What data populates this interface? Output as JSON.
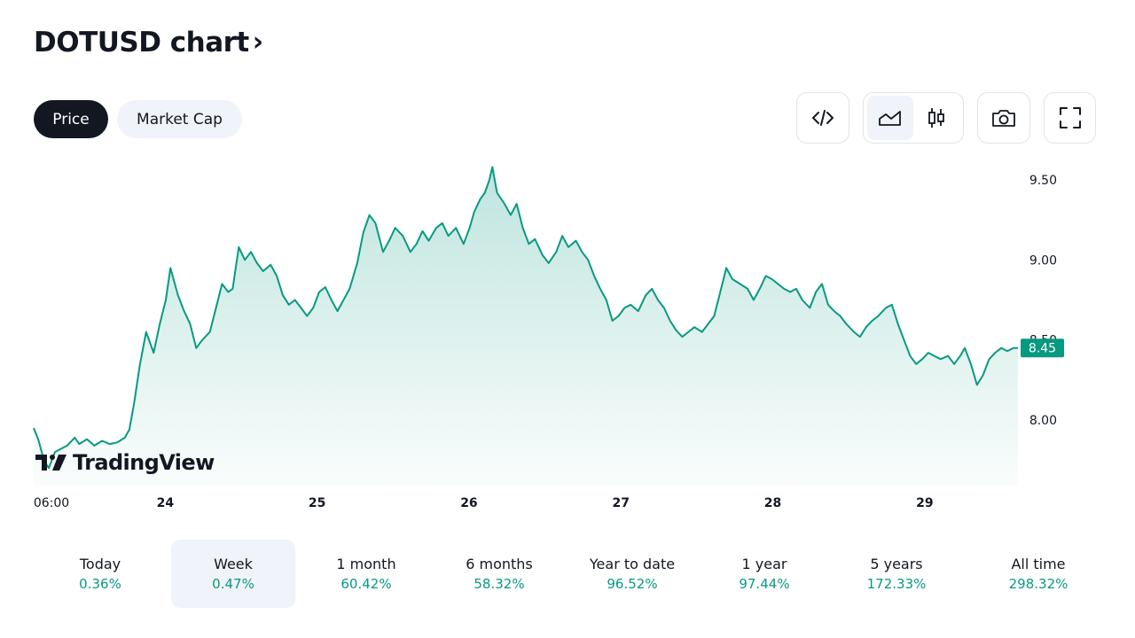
{
  "header": {
    "title": "DOTUSD chart",
    "chevron": "›"
  },
  "tabs": [
    {
      "label": "Price",
      "active": true
    },
    {
      "label": "Market Cap",
      "active": false
    }
  ],
  "toolbar": {
    "embed_icon": "code-icon",
    "area_icon": "area-chart-icon",
    "candle_icon": "candlestick-icon",
    "snapshot_icon": "camera-icon",
    "fullscreen_icon": "fullscreen-icon"
  },
  "watermark": {
    "text": "TradingView"
  },
  "colors": {
    "accent": "#089981",
    "text": "#131722",
    "muted_bg": "#f0f3fa"
  },
  "chart_data": {
    "type": "area",
    "symbol": "DOTUSD",
    "x_ticks": [
      "06:00",
      "24",
      "25",
      "26",
      "27",
      "28",
      "29"
    ],
    "y_ticks": [
      "9.50",
      "9.00",
      "8.50",
      "8.00"
    ],
    "ylim": [
      7.6,
      9.7
    ],
    "current_price": 8.45,
    "current_label": "8.45",
    "series": [
      {
        "name": "DOTUSD",
        "x_units": "days from 06:00, Jan 23",
        "points": [
          [
            0.0,
            7.95
          ],
          [
            0.03,
            7.88
          ],
          [
            0.07,
            7.74
          ],
          [
            0.1,
            7.7
          ],
          [
            0.14,
            7.8
          ],
          [
            0.18,
            7.82
          ],
          [
            0.22,
            7.84
          ],
          [
            0.27,
            7.89
          ],
          [
            0.3,
            7.85
          ],
          [
            0.35,
            7.88
          ],
          [
            0.4,
            7.84
          ],
          [
            0.45,
            7.87
          ],
          [
            0.5,
            7.85
          ],
          [
            0.55,
            7.86
          ],
          [
            0.6,
            7.89
          ],
          [
            0.63,
            7.94
          ],
          [
            0.66,
            8.1
          ],
          [
            0.7,
            8.35
          ],
          [
            0.74,
            8.55
          ],
          [
            0.79,
            8.42
          ],
          [
            0.83,
            8.6
          ],
          [
            0.87,
            8.75
          ],
          [
            0.9,
            8.95
          ],
          [
            0.95,
            8.78
          ],
          [
            0.99,
            8.68
          ],
          [
            1.03,
            8.6
          ],
          [
            1.07,
            8.45
          ],
          [
            1.11,
            8.5
          ],
          [
            1.16,
            8.55
          ],
          [
            1.2,
            8.7
          ],
          [
            1.24,
            8.85
          ],
          [
            1.28,
            8.8
          ],
          [
            1.31,
            8.82
          ],
          [
            1.35,
            9.08
          ],
          [
            1.39,
            9.0
          ],
          [
            1.43,
            9.05
          ],
          [
            1.47,
            8.98
          ],
          [
            1.51,
            8.93
          ],
          [
            1.56,
            8.97
          ],
          [
            1.6,
            8.9
          ],
          [
            1.64,
            8.78
          ],
          [
            1.68,
            8.72
          ],
          [
            1.72,
            8.75
          ],
          [
            1.76,
            8.7
          ],
          [
            1.8,
            8.65
          ],
          [
            1.84,
            8.7
          ],
          [
            1.88,
            8.8
          ],
          [
            1.92,
            8.83
          ],
          [
            1.96,
            8.75
          ],
          [
            2.0,
            8.68
          ],
          [
            2.04,
            8.75
          ],
          [
            2.08,
            8.82
          ],
          [
            2.13,
            8.98
          ],
          [
            2.17,
            9.17
          ],
          [
            2.21,
            9.28
          ],
          [
            2.25,
            9.23
          ],
          [
            2.3,
            9.05
          ],
          [
            2.34,
            9.12
          ],
          [
            2.38,
            9.2
          ],
          [
            2.43,
            9.15
          ],
          [
            2.48,
            9.05
          ],
          [
            2.52,
            9.1
          ],
          [
            2.56,
            9.18
          ],
          [
            2.6,
            9.12
          ],
          [
            2.65,
            9.2
          ],
          [
            2.69,
            9.23
          ],
          [
            2.73,
            9.15
          ],
          [
            2.78,
            9.2
          ],
          [
            2.83,
            9.1
          ],
          [
            2.87,
            9.2
          ],
          [
            2.9,
            9.3
          ],
          [
            2.94,
            9.38
          ],
          [
            2.97,
            9.42
          ],
          [
            3.0,
            9.5
          ],
          [
            3.02,
            9.58
          ],
          [
            3.05,
            9.42
          ],
          [
            3.1,
            9.35
          ],
          [
            3.14,
            9.28
          ],
          [
            3.18,
            9.35
          ],
          [
            3.22,
            9.2
          ],
          [
            3.26,
            9.1
          ],
          [
            3.3,
            9.13
          ],
          [
            3.35,
            9.03
          ],
          [
            3.39,
            8.98
          ],
          [
            3.44,
            9.05
          ],
          [
            3.48,
            9.15
          ],
          [
            3.52,
            9.08
          ],
          [
            3.57,
            9.12
          ],
          [
            3.61,
            9.05
          ],
          [
            3.65,
            9.0
          ],
          [
            3.69,
            8.9
          ],
          [
            3.73,
            8.82
          ],
          [
            3.77,
            8.75
          ],
          [
            3.81,
            8.62
          ],
          [
            3.85,
            8.65
          ],
          [
            3.89,
            8.7
          ],
          [
            3.93,
            8.72
          ],
          [
            3.98,
            8.68
          ],
          [
            4.03,
            8.78
          ],
          [
            4.07,
            8.82
          ],
          [
            4.11,
            8.75
          ],
          [
            4.15,
            8.7
          ],
          [
            4.19,
            8.62
          ],
          [
            4.23,
            8.56
          ],
          [
            4.27,
            8.52
          ],
          [
            4.31,
            8.55
          ],
          [
            4.35,
            8.58
          ],
          [
            4.4,
            8.55
          ],
          [
            4.44,
            8.6
          ],
          [
            4.48,
            8.65
          ],
          [
            4.52,
            8.8
          ],
          [
            4.56,
            8.95
          ],
          [
            4.6,
            8.88
          ],
          [
            4.65,
            8.85
          ],
          [
            4.7,
            8.82
          ],
          [
            4.74,
            8.75
          ],
          [
            4.78,
            8.82
          ],
          [
            4.82,
            8.9
          ],
          [
            4.86,
            8.88
          ],
          [
            4.9,
            8.85
          ],
          [
            4.94,
            8.82
          ],
          [
            4.98,
            8.8
          ],
          [
            5.02,
            8.82
          ],
          [
            5.06,
            8.75
          ],
          [
            5.11,
            8.7
          ],
          [
            5.15,
            8.8
          ],
          [
            5.19,
            8.85
          ],
          [
            5.23,
            8.72
          ],
          [
            5.27,
            8.68
          ],
          [
            5.31,
            8.65
          ],
          [
            5.35,
            8.6
          ],
          [
            5.4,
            8.55
          ],
          [
            5.44,
            8.52
          ],
          [
            5.48,
            8.58
          ],
          [
            5.52,
            8.62
          ],
          [
            5.56,
            8.65
          ],
          [
            5.61,
            8.7
          ],
          [
            5.65,
            8.72
          ],
          [
            5.69,
            8.6
          ],
          [
            5.73,
            8.5
          ],
          [
            5.77,
            8.4
          ],
          [
            5.81,
            8.35
          ],
          [
            5.85,
            8.38
          ],
          [
            5.89,
            8.42
          ],
          [
            5.93,
            8.4
          ],
          [
            5.97,
            8.38
          ],
          [
            6.02,
            8.4
          ],
          [
            6.06,
            8.35
          ],
          [
            6.1,
            8.4
          ],
          [
            6.13,
            8.45
          ],
          [
            6.17,
            8.35
          ],
          [
            6.21,
            8.22
          ],
          [
            6.25,
            8.28
          ],
          [
            6.29,
            8.38
          ],
          [
            6.33,
            8.42
          ],
          [
            6.37,
            8.45
          ],
          [
            6.41,
            8.43
          ],
          [
            6.45,
            8.45
          ],
          [
            6.48,
            8.45
          ]
        ]
      }
    ]
  },
  "periods": [
    {
      "label": "Today",
      "value": "0.36%",
      "active": false
    },
    {
      "label": "Week",
      "value": "0.47%",
      "active": true
    },
    {
      "label": "1 month",
      "value": "60.42%",
      "active": false
    },
    {
      "label": "6 months",
      "value": "58.32%",
      "active": false
    },
    {
      "label": "Year to date",
      "value": "96.52%",
      "active": false
    },
    {
      "label": "1 year",
      "value": "97.44%",
      "active": false
    },
    {
      "label": "5 years",
      "value": "172.33%",
      "active": false
    },
    {
      "label": "All time",
      "value": "298.32%",
      "active": false
    }
  ]
}
